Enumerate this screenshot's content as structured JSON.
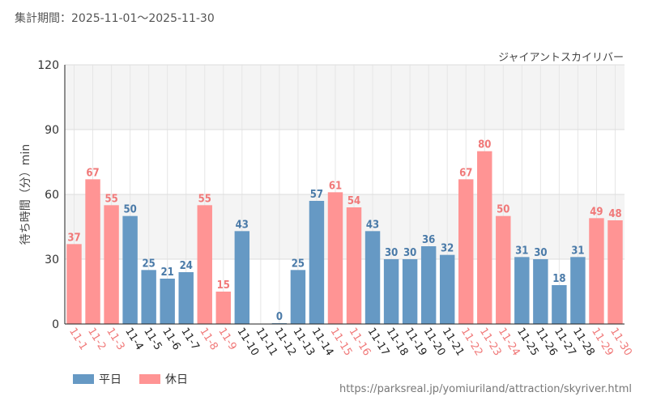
{
  "header": {
    "period_label": "集計期間：2025-11-01〜2025-11-30",
    "attraction_name": "ジャイアントスカイリバー"
  },
  "legend": {
    "weekday_label": "平日",
    "holiday_label": "休日"
  },
  "source_url": "https://parksreal.jp/yomiuriland/attraction/skyriver.html",
  "colors": {
    "weekday": "#6699c4",
    "holiday": "#ff9494",
    "weekday_text": "#4a7aa8",
    "holiday_text": "#f07878"
  },
  "chart_data": {
    "type": "bar",
    "title": "ジャイアントスカイリバー",
    "ylabel": "待ち時間（分）min",
    "xlabel": "",
    "ylim": [
      0,
      120
    ],
    "yticks": [
      0,
      30,
      60,
      90,
      120
    ],
    "grid": true,
    "categories": [
      "11-1",
      "11-2",
      "11-3",
      "11-4",
      "11-5",
      "11-6",
      "11-7",
      "11-8",
      "11-9",
      "11-10",
      "11-11",
      "11-12",
      "11-13",
      "11-14",
      "11-15",
      "11-16",
      "11-17",
      "11-18",
      "11-19",
      "11-20",
      "11-21",
      "11-22",
      "11-23",
      "11-24",
      "11-25",
      "11-26",
      "11-27",
      "11-28",
      "11-29",
      "11-30"
    ],
    "values": [
      37,
      67,
      55,
      50,
      25,
      21,
      24,
      55,
      15,
      43,
      null,
      0,
      25,
      57,
      61,
      54,
      43,
      30,
      30,
      36,
      32,
      67,
      80,
      50,
      31,
      30,
      18,
      31,
      49,
      48
    ],
    "day_type": [
      "holiday",
      "holiday",
      "holiday",
      "weekday",
      "weekday",
      "weekday",
      "weekday",
      "holiday",
      "holiday",
      "weekday",
      "weekday",
      "weekday",
      "weekday",
      "weekday",
      "holiday",
      "holiday",
      "weekday",
      "weekday",
      "weekday",
      "weekday",
      "weekday",
      "holiday",
      "holiday",
      "holiday",
      "weekday",
      "weekday",
      "weekday",
      "weekday",
      "holiday",
      "holiday"
    ],
    "series": [
      {
        "name": "平日"
      },
      {
        "name": "休日"
      }
    ]
  }
}
